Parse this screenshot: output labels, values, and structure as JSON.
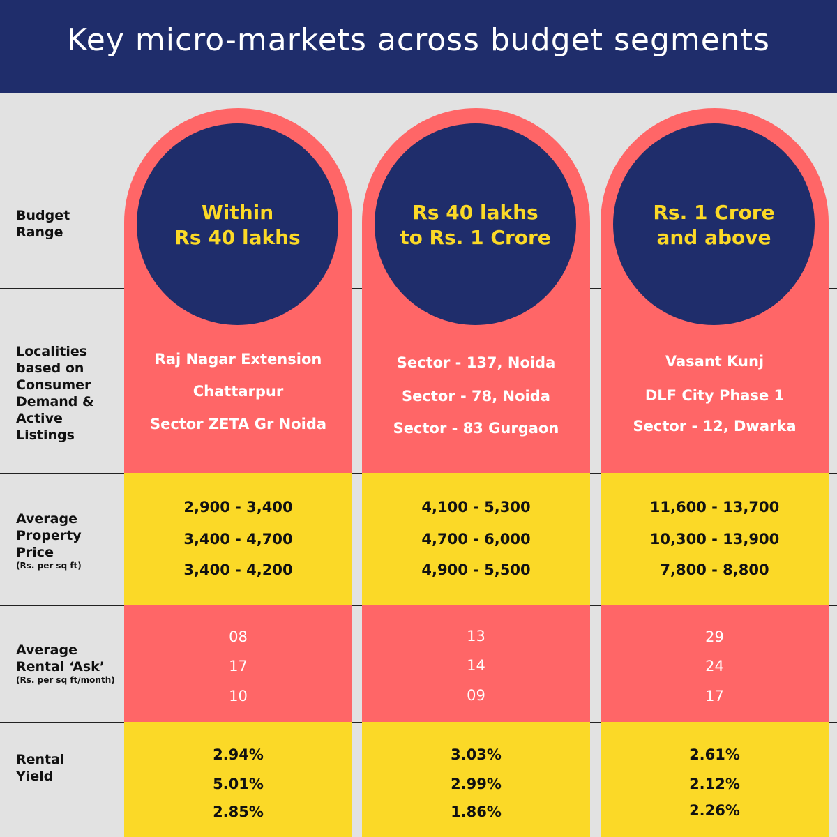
{
  "title": "Key micro-markets across budget segments",
  "row_labels": {
    "budget": "Budget Range",
    "localities": "Localities based on Consumer Demand & Active Listings",
    "price": "Average Property Price",
    "price_unit": "(Rs. per sq ft)",
    "rental": "Average Rental ‘Ask’",
    "rental_unit": "(Rs. per sq ft/month)",
    "yield": "Rental Yield"
  },
  "columns": [
    {
      "budget_line1": "Within",
      "budget_line2": "Rs 40 lakhs",
      "localities": [
        "Raj Nagar Extension",
        "Chattarpur",
        "Sector ZETA Gr Noida"
      ],
      "prices": [
        "2,900 - 3,400",
        "3,400 - 4,700",
        "3,400 - 4,200"
      ],
      "rentals": [
        "08",
        "17",
        "10"
      ],
      "yields": [
        "2.94%",
        "5.01%",
        "2.85%"
      ]
    },
    {
      "budget_line1": "Rs 40 lakhs",
      "budget_line2": "to Rs. 1 Crore",
      "localities": [
        "Sector - 137, Noida",
        "Sector - 78, Noida",
        "Sector - 83 Gurgaon"
      ],
      "prices": [
        "4,100 - 5,300",
        "4,700 - 6,000",
        "4,900 - 5,500"
      ],
      "rentals": [
        "13",
        "14",
        "09"
      ],
      "yields": [
        "3.03%",
        "2.99%",
        "1.86%"
      ]
    },
    {
      "budget_line1": "Rs. 1 Crore",
      "budget_line2": "and above",
      "localities": [
        "Vasant Kunj",
        "DLF City Phase 1",
        "Sector - 12, Dwarka"
      ],
      "prices": [
        "11,600 - 13,700",
        "10,300 - 13,900",
        "7,800 - 8,800"
      ],
      "rentals": [
        "29",
        "24",
        "17"
      ],
      "yields": [
        "2.61%",
        "2.12%",
        "2.26%"
      ]
    }
  ],
  "colors": {
    "navy": "#1f2d6b",
    "coral": "#ff6667",
    "yellow": "#fbd927",
    "background": "#e2e2e2"
  }
}
